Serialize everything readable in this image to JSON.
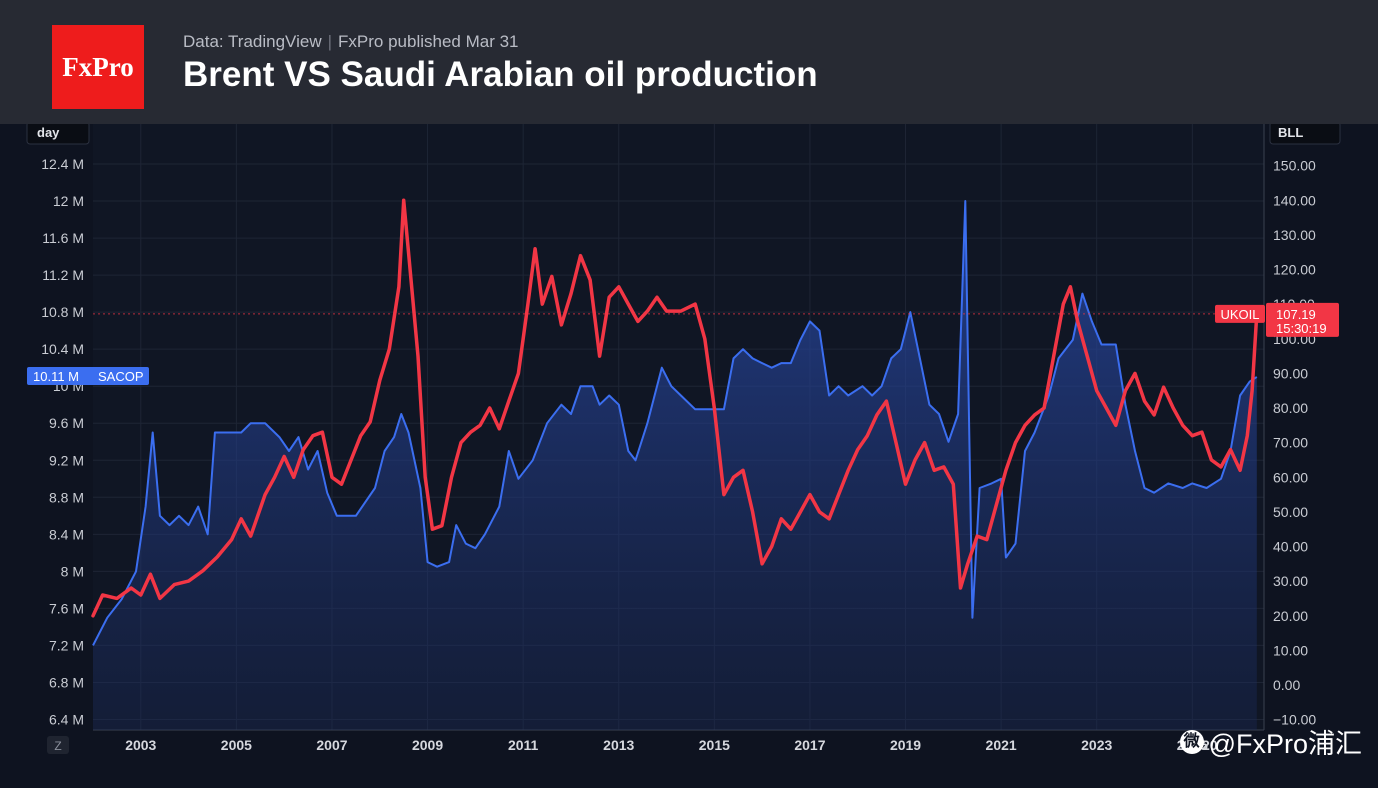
{
  "header": {
    "logo_text": "FxPro",
    "source": "Data: TradingView",
    "separator": "|",
    "published": "FxPro published Mar 31",
    "title": "Brent VS Saudi Arabian oil production"
  },
  "watermark": {
    "icon": "weibo-icon",
    "text": "@FxPro浦汇"
  },
  "chart_data": {
    "type": "line",
    "background": "#0e1320",
    "left_axis": {
      "unit_label": "day",
      "range": [
        6400000,
        12800000
      ],
      "ticks": [
        6400000,
        6800000,
        7200000,
        7600000,
        8000000,
        8400000,
        8800000,
        9200000,
        9600000,
        10000000,
        10400000,
        10800000,
        11200000,
        11600000,
        12000000,
        12400000
      ],
      "tick_labels": [
        "6.4 M",
        "6.8 M",
        "7.2 M",
        "7.6 M",
        "8 M",
        "8.4 M",
        "8.8 M",
        "9.2 M",
        "9.6 M",
        "10 M",
        "10.4 M",
        "10.8 M",
        "11.2 M",
        "11.6 M",
        "12 M",
        "12.4 M"
      ]
    },
    "right_axis": {
      "unit_label": "BLL",
      "range": [
        -10,
        155
      ],
      "ticks": [
        -10,
        0,
        10,
        20,
        30,
        40,
        50,
        60,
        70,
        80,
        90,
        100,
        110,
        120,
        130,
        140,
        150
      ],
      "tick_labels": [
        "−10.00",
        "0.00",
        "10.00",
        "20.00",
        "30.00",
        "40.00",
        "50.00",
        "60.00",
        "70.00",
        "80.00",
        "90.00",
        "100.00",
        "110.00",
        "120.00",
        "130.00",
        "140.00",
        "150.00"
      ]
    },
    "x_axis": {
      "range": [
        2002.0,
        2026.5
      ],
      "ticks": [
        2003,
        2005,
        2007,
        2009,
        2011,
        2013,
        2015,
        2017,
        2019,
        2021,
        2023,
        2025
      ],
      "tick_labels": [
        "2003",
        "2005",
        "2007",
        "2009",
        "2011",
        "2013",
        "2015",
        "2017",
        "2019",
        "2021",
        "2023",
        "2025"
      ],
      "clipped_label": "20",
      "zoom_button": "Z"
    },
    "grid": true,
    "series": [
      {
        "name": "SACOP",
        "axis": "left",
        "color": "#3b6ef0",
        "area": true,
        "last_value_label": "10.11 M",
        "points": [
          [
            2002.0,
            7.2
          ],
          [
            2002.3,
            7.5
          ],
          [
            2002.6,
            7.7
          ],
          [
            2002.9,
            8.0
          ],
          [
            2003.1,
            8.7
          ],
          [
            2003.25,
            9.5
          ],
          [
            2003.4,
            8.6
          ],
          [
            2003.6,
            8.5
          ],
          [
            2003.8,
            8.6
          ],
          [
            2004.0,
            8.5
          ],
          [
            2004.2,
            8.7
          ],
          [
            2004.4,
            8.4
          ],
          [
            2004.55,
            9.5
          ],
          [
            2004.8,
            9.5
          ],
          [
            2005.1,
            9.5
          ],
          [
            2005.3,
            9.6
          ],
          [
            2005.6,
            9.6
          ],
          [
            2005.9,
            9.45
          ],
          [
            2006.1,
            9.3
          ],
          [
            2006.3,
            9.45
          ],
          [
            2006.5,
            9.1
          ],
          [
            2006.7,
            9.3
          ],
          [
            2006.9,
            8.85
          ],
          [
            2007.1,
            8.6
          ],
          [
            2007.5,
            8.6
          ],
          [
            2007.9,
            8.9
          ],
          [
            2008.1,
            9.3
          ],
          [
            2008.3,
            9.45
          ],
          [
            2008.45,
            9.7
          ],
          [
            2008.6,
            9.5
          ],
          [
            2008.85,
            8.9
          ],
          [
            2009.0,
            8.1
          ],
          [
            2009.2,
            8.05
          ],
          [
            2009.45,
            8.1
          ],
          [
            2009.6,
            8.5
          ],
          [
            2009.8,
            8.3
          ],
          [
            2010.0,
            8.25
          ],
          [
            2010.2,
            8.4
          ],
          [
            2010.5,
            8.7
          ],
          [
            2010.7,
            9.3
          ],
          [
            2010.9,
            9.0
          ],
          [
            2011.2,
            9.2
          ],
          [
            2011.5,
            9.6
          ],
          [
            2011.8,
            9.8
          ],
          [
            2012.0,
            9.7
          ],
          [
            2012.2,
            10.0
          ],
          [
            2012.45,
            10.0
          ],
          [
            2012.6,
            9.8
          ],
          [
            2012.8,
            9.9
          ],
          [
            2013.0,
            9.8
          ],
          [
            2013.2,
            9.3
          ],
          [
            2013.35,
            9.2
          ],
          [
            2013.6,
            9.6
          ],
          [
            2013.9,
            10.2
          ],
          [
            2014.1,
            10.0
          ],
          [
            2014.3,
            9.9
          ],
          [
            2014.6,
            9.75
          ],
          [
            2014.9,
            9.75
          ],
          [
            2015.2,
            9.75
          ],
          [
            2015.4,
            10.3
          ],
          [
            2015.6,
            10.4
          ],
          [
            2015.8,
            10.3
          ],
          [
            2016.0,
            10.25
          ],
          [
            2016.2,
            10.2
          ],
          [
            2016.4,
            10.25
          ],
          [
            2016.6,
            10.25
          ],
          [
            2016.8,
            10.5
          ],
          [
            2017.0,
            10.7
          ],
          [
            2017.2,
            10.6
          ],
          [
            2017.4,
            9.9
          ],
          [
            2017.6,
            10.0
          ],
          [
            2017.8,
            9.9
          ],
          [
            2018.1,
            10.0
          ],
          [
            2018.3,
            9.9
          ],
          [
            2018.5,
            10.0
          ],
          [
            2018.7,
            10.3
          ],
          [
            2018.9,
            10.4
          ],
          [
            2019.1,
            10.8
          ],
          [
            2019.3,
            10.3
          ],
          [
            2019.5,
            9.8
          ],
          [
            2019.7,
            9.7
          ],
          [
            2019.9,
            9.4
          ],
          [
            2020.1,
            9.7
          ],
          [
            2020.25,
            12.0
          ],
          [
            2020.4,
            7.5
          ],
          [
            2020.55,
            8.9
          ],
          [
            2020.8,
            8.95
          ],
          [
            2021.0,
            9.0
          ],
          [
            2021.1,
            8.15
          ],
          [
            2021.3,
            8.3
          ],
          [
            2021.5,
            9.3
          ],
          [
            2021.7,
            9.5
          ],
          [
            2022.0,
            9.9
          ],
          [
            2022.2,
            10.3
          ],
          [
            2022.5,
            10.5
          ],
          [
            2022.7,
            11.0
          ],
          [
            2022.9,
            10.7
          ],
          [
            2023.1,
            10.45
          ],
          [
            2023.4,
            10.45
          ],
          [
            2023.6,
            9.8
          ],
          [
            2023.8,
            9.3
          ],
          [
            2024.0,
            8.9
          ],
          [
            2024.2,
            8.85
          ],
          [
            2024.5,
            8.95
          ],
          [
            2024.8,
            8.9
          ],
          [
            2025.0,
            8.95
          ],
          [
            2025.3,
            8.9
          ],
          [
            2025.6,
            9.0
          ],
          [
            2025.8,
            9.3
          ],
          [
            2026.0,
            9.9
          ],
          [
            2026.2,
            10.05
          ],
          [
            2026.35,
            10.1
          ]
        ]
      },
      {
        "name": "UKOIL",
        "axis": "right",
        "color": "#f23645",
        "last_value_label": "107.19",
        "time_label": "15:30:19",
        "points": [
          [
            2002.0,
            20
          ],
          [
            2002.2,
            26
          ],
          [
            2002.5,
            25
          ],
          [
            2002.8,
            28
          ],
          [
            2003.0,
            26
          ],
          [
            2003.2,
            32
          ],
          [
            2003.4,
            25
          ],
          [
            2003.7,
            29
          ],
          [
            2004.0,
            30
          ],
          [
            2004.3,
            33
          ],
          [
            2004.6,
            37
          ],
          [
            2004.9,
            42
          ],
          [
            2005.1,
            48
          ],
          [
            2005.3,
            43
          ],
          [
            2005.6,
            55
          ],
          [
            2005.8,
            60
          ],
          [
            2006.0,
            66
          ],
          [
            2006.2,
            60
          ],
          [
            2006.4,
            68
          ],
          [
            2006.6,
            72
          ],
          [
            2006.8,
            73
          ],
          [
            2007.0,
            60
          ],
          [
            2007.2,
            58
          ],
          [
            2007.4,
            65
          ],
          [
            2007.6,
            72
          ],
          [
            2007.8,
            76
          ],
          [
            2008.0,
            88
          ],
          [
            2008.2,
            97
          ],
          [
            2008.4,
            115
          ],
          [
            2008.5,
            140
          ],
          [
            2008.6,
            125
          ],
          [
            2008.8,
            95
          ],
          [
            2008.95,
            60
          ],
          [
            2009.1,
            45
          ],
          [
            2009.3,
            46
          ],
          [
            2009.5,
            60
          ],
          [
            2009.7,
            70
          ],
          [
            2009.9,
            73
          ],
          [
            2010.1,
            75
          ],
          [
            2010.3,
            80
          ],
          [
            2010.5,
            74
          ],
          [
            2010.7,
            82
          ],
          [
            2010.9,
            90
          ],
          [
            2011.1,
            110
          ],
          [
            2011.25,
            126
          ],
          [
            2011.4,
            110
          ],
          [
            2011.6,
            118
          ],
          [
            2011.8,
            104
          ],
          [
            2012.0,
            113
          ],
          [
            2012.2,
            124
          ],
          [
            2012.4,
            117
          ],
          [
            2012.6,
            95
          ],
          [
            2012.8,
            112
          ],
          [
            2013.0,
            115
          ],
          [
            2013.2,
            110
          ],
          [
            2013.4,
            105
          ],
          [
            2013.6,
            108
          ],
          [
            2013.8,
            112
          ],
          [
            2014.0,
            108
          ],
          [
            2014.3,
            108
          ],
          [
            2014.6,
            110
          ],
          [
            2014.8,
            100
          ],
          [
            2015.0,
            80
          ],
          [
            2015.2,
            55
          ],
          [
            2015.4,
            60
          ],
          [
            2015.6,
            62
          ],
          [
            2015.8,
            50
          ],
          [
            2016.0,
            35
          ],
          [
            2016.2,
            40
          ],
          [
            2016.4,
            48
          ],
          [
            2016.6,
            45
          ],
          [
            2016.8,
            50
          ],
          [
            2017.0,
            55
          ],
          [
            2017.2,
            50
          ],
          [
            2017.4,
            48
          ],
          [
            2017.6,
            55
          ],
          [
            2017.8,
            62
          ],
          [
            2018.0,
            68
          ],
          [
            2018.2,
            72
          ],
          [
            2018.4,
            78
          ],
          [
            2018.6,
            82
          ],
          [
            2018.8,
            70
          ],
          [
            2019.0,
            58
          ],
          [
            2019.2,
            65
          ],
          [
            2019.4,
            70
          ],
          [
            2019.6,
            62
          ],
          [
            2019.8,
            63
          ],
          [
            2020.0,
            58
          ],
          [
            2020.15,
            28
          ],
          [
            2020.3,
            35
          ],
          [
            2020.5,
            43
          ],
          [
            2020.7,
            42
          ],
          [
            2020.9,
            52
          ],
          [
            2021.1,
            62
          ],
          [
            2021.3,
            70
          ],
          [
            2021.5,
            75
          ],
          [
            2021.7,
            78
          ],
          [
            2021.9,
            80
          ],
          [
            2022.1,
            95
          ],
          [
            2022.3,
            110
          ],
          [
            2022.45,
            115
          ],
          [
            2022.6,
            105
          ],
          [
            2022.8,
            95
          ],
          [
            2023.0,
            85
          ],
          [
            2023.2,
            80
          ],
          [
            2023.4,
            75
          ],
          [
            2023.6,
            85
          ],
          [
            2023.8,
            90
          ],
          [
            2024.0,
            82
          ],
          [
            2024.2,
            78
          ],
          [
            2024.4,
            86
          ],
          [
            2024.6,
            80
          ],
          [
            2024.8,
            75
          ],
          [
            2025.0,
            72
          ],
          [
            2025.2,
            73
          ],
          [
            2025.4,
            65
          ],
          [
            2025.6,
            63
          ],
          [
            2025.8,
            68
          ],
          [
            2026.0,
            62
          ],
          [
            2026.15,
            72
          ],
          [
            2026.25,
            85
          ],
          [
            2026.35,
            107.19
          ]
        ]
      }
    ]
  }
}
